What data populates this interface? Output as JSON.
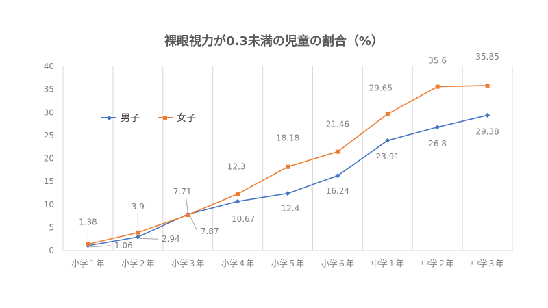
{
  "chart_data": {
    "type": "line",
    "title": "裸眼視力が0.3未満の児童の割合（%）",
    "categories": [
      "小学１年",
      "小学２年",
      "小学３年",
      "小学４年",
      "小学５年",
      "小学６年",
      "中学１年",
      "中学２年",
      "中学３年"
    ],
    "ylim": [
      0,
      40
    ],
    "yticks": [
      0,
      5,
      10,
      15,
      20,
      25,
      30,
      35,
      40
    ],
    "grid": "vertical",
    "legend_position": "left",
    "series": [
      {
        "name": "男子",
        "color": "#4472C4",
        "marker": "diamond",
        "values": [
          1.06,
          2.94,
          7.87,
          10.67,
          12.4,
          16.24,
          23.91,
          26.8,
          29.38
        ],
        "labels": [
          "1.06",
          "2.94",
          "7.87",
          "10.67",
          "12.4",
          "16.24",
          "23.91",
          "26.8",
          "29.38"
        ]
      },
      {
        "name": "女子",
        "color": "#ED7D31",
        "marker": "square",
        "values": [
          1.38,
          3.9,
          7.71,
          12.3,
          18.18,
          21.46,
          29.65,
          35.6,
          35.85
        ],
        "labels": [
          "1.38",
          "3.9",
          "7.71",
          "12.3",
          "18.18",
          "21.46",
          "29.65",
          "35.6",
          "35.85"
        ]
      }
    ]
  }
}
